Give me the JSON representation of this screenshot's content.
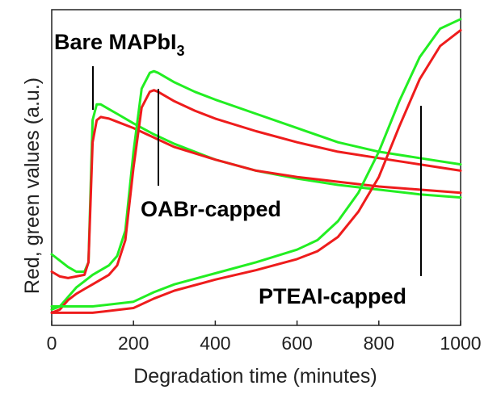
{
  "chart_data": {
    "type": "line",
    "title": "",
    "xlabel": "Degradation time (minutes)",
    "ylabel": "Red, green values (a.u.)",
    "xlim": [
      0,
      1000
    ],
    "ylim": [
      0,
      1
    ],
    "xticks": [
      "0",
      "200",
      "400",
      "600",
      "800",
      "1000"
    ],
    "yticks_shown": false,
    "grid": false,
    "colors": {
      "red": "#ee1c1c",
      "green": "#22ee22",
      "axis": "#222222"
    },
    "annotations": [
      {
        "text": "Bare MAPbI",
        "subscript": "3"
      },
      {
        "text": "OABr-capped"
      },
      {
        "text": "PTEAI-capped"
      }
    ],
    "series": [
      {
        "color": "green",
        "sample": "Bare MAPbI3",
        "x": [
          0,
          20,
          40,
          60,
          80,
          90,
          100,
          110,
          120,
          140,
          160,
          200,
          250,
          300,
          400,
          500,
          600,
          700,
          800,
          900,
          1000
        ],
        "y": [
          0.225,
          0.205,
          0.185,
          0.17,
          0.17,
          0.2,
          0.65,
          0.7,
          0.7,
          0.685,
          0.67,
          0.64,
          0.605,
          0.575,
          0.525,
          0.49,
          0.465,
          0.445,
          0.43,
          0.415,
          0.405
        ]
      },
      {
        "color": "red",
        "sample": "Bare MAPbI3",
        "x": [
          0,
          20,
          40,
          60,
          80,
          90,
          100,
          110,
          120,
          140,
          160,
          200,
          250,
          300,
          400,
          500,
          600,
          700,
          800,
          900,
          1000
        ],
        "y": [
          0.17,
          0.155,
          0.15,
          0.155,
          0.16,
          0.2,
          0.58,
          0.65,
          0.66,
          0.655,
          0.645,
          0.625,
          0.595,
          0.565,
          0.525,
          0.49,
          0.47,
          0.455,
          0.44,
          0.43,
          0.42
        ]
      },
      {
        "color": "green",
        "sample": "OABr-capped",
        "x": [
          0,
          20,
          40,
          60,
          80,
          100,
          120,
          140,
          160,
          180,
          200,
          220,
          240,
          250,
          260,
          300,
          350,
          400,
          500,
          600,
          700,
          800,
          900,
          1000
        ],
        "y": [
          0.05,
          0.06,
          0.09,
          0.12,
          0.14,
          0.16,
          0.175,
          0.19,
          0.22,
          0.3,
          0.55,
          0.75,
          0.8,
          0.805,
          0.8,
          0.77,
          0.74,
          0.715,
          0.67,
          0.625,
          0.58,
          0.55,
          0.53,
          0.51
        ]
      },
      {
        "color": "red",
        "sample": "OABr-capped",
        "x": [
          0,
          20,
          40,
          60,
          80,
          100,
          120,
          140,
          160,
          180,
          200,
          220,
          240,
          250,
          260,
          300,
          350,
          400,
          500,
          600,
          700,
          800,
          900,
          1000
        ],
        "y": [
          0.04,
          0.05,
          0.08,
          0.1,
          0.115,
          0.13,
          0.145,
          0.16,
          0.19,
          0.27,
          0.5,
          0.69,
          0.74,
          0.745,
          0.74,
          0.71,
          0.68,
          0.655,
          0.615,
          0.58,
          0.55,
          0.53,
          0.51,
          0.49
        ]
      },
      {
        "color": "green",
        "sample": "PTEAI-capped",
        "x": [
          0,
          100,
          200,
          250,
          300,
          400,
          500,
          600,
          650,
          700,
          750,
          800,
          850,
          900,
          950,
          1000
        ],
        "y": [
          0.06,
          0.06,
          0.075,
          0.105,
          0.13,
          0.165,
          0.2,
          0.24,
          0.27,
          0.33,
          0.42,
          0.55,
          0.71,
          0.85,
          0.94,
          0.97
        ]
      },
      {
        "color": "red",
        "sample": "PTEAI-capped",
        "x": [
          0,
          100,
          200,
          250,
          300,
          400,
          500,
          600,
          650,
          700,
          750,
          800,
          850,
          900,
          950,
          1000
        ],
        "y": [
          0.04,
          0.04,
          0.055,
          0.085,
          0.11,
          0.145,
          0.175,
          0.21,
          0.235,
          0.28,
          0.36,
          0.47,
          0.63,
          0.78,
          0.885,
          0.935
        ]
      }
    ]
  }
}
